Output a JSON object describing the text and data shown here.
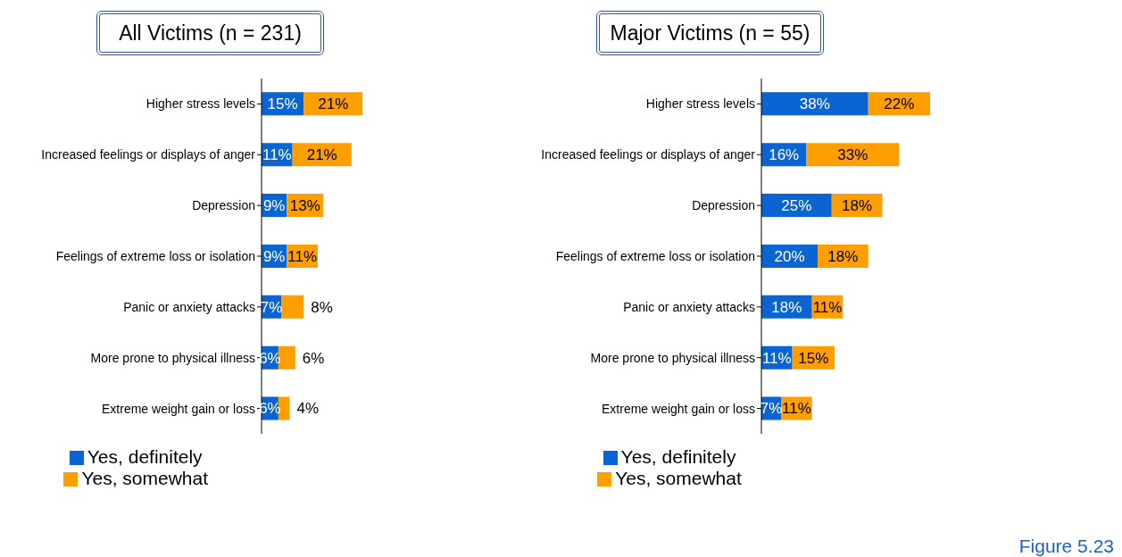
{
  "chart_data": [
    {
      "type": "bar",
      "orientation": "horizontal",
      "stacked": true,
      "title": "All Victims (n = 231)",
      "categories": [
        "Higher stress levels",
        "Increased feelings or displays of anger",
        "Depression",
        "Feelings of extreme loss or isolation",
        "Panic or anxiety attacks",
        "More prone to physical illness",
        "Extreme weight gain or loss"
      ],
      "series": [
        {
          "name": "Yes, definitely",
          "color": "#0a64d2",
          "values": [
            15,
            11,
            9,
            9,
            7,
            6,
            6
          ],
          "value_labels": [
            "15%",
            "11%",
            "9%",
            "9%",
            "7%",
            "6%",
            "6%"
          ]
        },
        {
          "name": "Yes, somewhat",
          "color": "#ff9e00",
          "values": [
            21,
            21,
            13,
            11,
            8,
            6,
            4
          ],
          "value_labels": [
            "21%",
            "21%",
            "13%",
            "11%",
            "8%",
            "6%",
            "4%"
          ]
        }
      ],
      "tick_labels": "y",
      "legend": "bottom"
    },
    {
      "type": "bar",
      "orientation": "horizontal",
      "stacked": true,
      "title": "Major Victims (n = 55)",
      "categories": [
        "Higher stress levels",
        "Increased feelings or displays of anger",
        "Depression",
        "Feelings of extreme loss or isolation",
        "Panic or anxiety attacks",
        "More prone to physical illness",
        "Extreme weight gain or loss"
      ],
      "series": [
        {
          "name": "Yes, definitely",
          "color": "#0a64d2",
          "values": [
            38,
            16,
            25,
            20,
            18,
            11,
            7
          ],
          "value_labels": [
            "38%",
            "16%",
            "25%",
            "20%",
            "18%",
            "11%",
            "7%"
          ]
        },
        {
          "name": "Yes, somewhat",
          "color": "#ff9e00",
          "values": [
            22,
            33,
            18,
            18,
            11,
            15,
            11
          ],
          "value_labels": [
            "22%",
            "33%",
            "18%",
            "18%",
            "11%",
            "15%",
            "11%"
          ]
        }
      ],
      "tick_labels": "y",
      "legend": "bottom",
      "annotations": [
        "Figure 5.23"
      ]
    }
  ]
}
